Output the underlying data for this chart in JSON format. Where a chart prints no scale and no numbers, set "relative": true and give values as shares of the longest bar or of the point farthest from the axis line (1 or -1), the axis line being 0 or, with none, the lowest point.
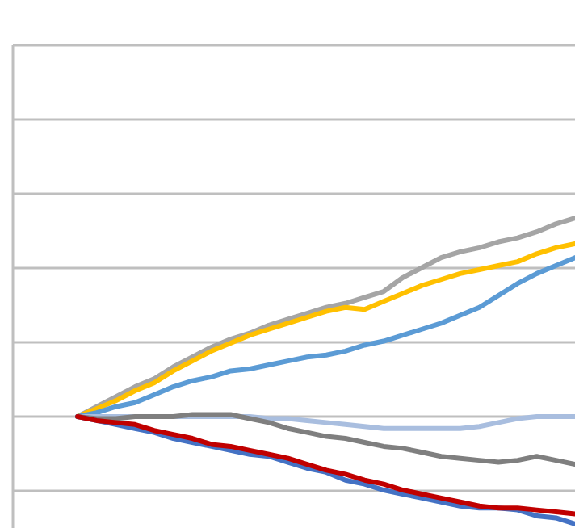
{
  "chart_data": {
    "type": "line",
    "relative": true,
    "grid": true,
    "marker": "none",
    "line_style": "solid",
    "categories": [
      null,
      null,
      null,
      null,
      null,
      null,
      null,
      null,
      null,
      null,
      null,
      null,
      null,
      null,
      null,
      null,
      null,
      null,
      null,
      null,
      null,
      null,
      null,
      null,
      null,
      null,
      null,
      null,
      null,
      null
    ],
    "series": [
      {
        "color": "#a5a5a5",
        "values": [
          null,
          null,
          null,
          0,
          0.05,
          0.1,
          0.15,
          0.19,
          0.25,
          0.3,
          0.35,
          0.39,
          0.42,
          0.46,
          0.49,
          0.52,
          0.55,
          0.57,
          0.6,
          0.63,
          0.7,
          0.75,
          0.8,
          0.83,
          0.85,
          0.88,
          0.9,
          0.93,
          0.97,
          1
        ]
      },
      {
        "color": "#ffc000",
        "values": [
          null,
          null,
          null,
          0,
          0.04,
          0.08,
          0.13,
          0.17,
          0.23,
          0.28,
          0.33,
          0.37,
          0.41,
          0.44,
          0.47,
          0.5,
          0.53,
          0.55,
          0.54,
          0.58,
          0.62,
          0.66,
          0.69,
          0.72,
          0.74,
          0.76,
          0.78,
          0.82,
          0.85,
          0.87
        ]
      },
      {
        "color": "#5b9bd5",
        "values": [
          null,
          null,
          null,
          0,
          0.02,
          0.05,
          0.07,
          0.11,
          0.15,
          0.18,
          0.2,
          0.23,
          0.24,
          0.26,
          0.28,
          0.3,
          0.31,
          0.33,
          0.36,
          0.38,
          0.41,
          0.44,
          0.47,
          0.51,
          0.55,
          0.61,
          0.67,
          0.72,
          0.76,
          0.8
        ]
      },
      {
        "color": "#a9bedf",
        "values": [
          null,
          null,
          null,
          0,
          0,
          0,
          0,
          0,
          0,
          0,
          0,
          0,
          0,
          -0.01,
          -0.01,
          -0.02,
          -0.03,
          -0.04,
          -0.05,
          -0.06,
          -0.06,
          -0.06,
          -0.06,
          -0.06,
          -0.05,
          -0.03,
          -0.01,
          0,
          0,
          0
        ]
      },
      {
        "color": "#7f7f7f",
        "values": [
          null,
          null,
          null,
          0,
          -0.01,
          -0.01,
          0,
          0,
          0,
          0.01,
          0.01,
          0.01,
          -0.01,
          -0.03,
          -0.06,
          -0.08,
          -0.1,
          -0.11,
          -0.13,
          -0.15,
          -0.16,
          -0.18,
          -0.2,
          -0.21,
          -0.22,
          -0.23,
          -0.22,
          -0.2,
          -0.22,
          -0.24
        ]
      },
      {
        "color": "#4472c4",
        "values": [
          null,
          null,
          null,
          0,
          -0.02,
          -0.04,
          -0.06,
          -0.08,
          -0.11,
          -0.13,
          -0.15,
          -0.17,
          -0.19,
          -0.2,
          -0.23,
          -0.26,
          -0.28,
          -0.32,
          -0.34,
          -0.37,
          -0.39,
          -0.41,
          -0.43,
          -0.45,
          -0.46,
          -0.46,
          -0.47,
          -0.5,
          -0.51,
          -0.54
        ]
      },
      {
        "color": "#c00000",
        "values": [
          null,
          null,
          null,
          0,
          -0.02,
          -0.03,
          -0.04,
          -0.07,
          -0.09,
          -0.11,
          -0.14,
          -0.15,
          -0.17,
          -0.19,
          -0.21,
          -0.24,
          -0.27,
          -0.29,
          -0.32,
          -0.34,
          -0.37,
          -0.39,
          -0.41,
          -0.43,
          -0.45,
          -0.46,
          -0.46,
          -0.47,
          -0.48,
          -0.49
        ]
      }
    ]
  }
}
